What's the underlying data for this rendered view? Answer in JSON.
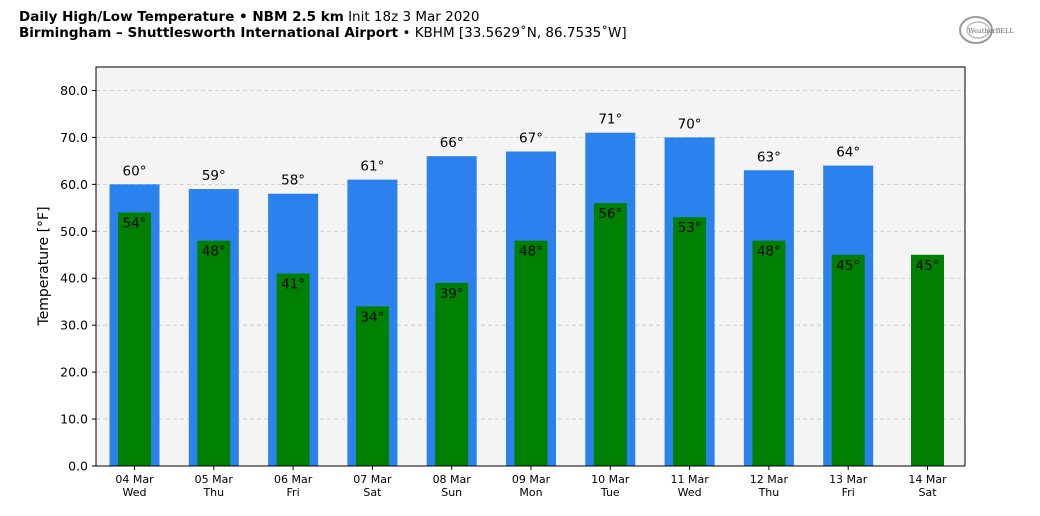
{
  "header": {
    "line1_bold": "Daily High/Low Temperature • NBM 2.5 km",
    "line1_thin": "Init 18z 3 Mar 2020",
    "line2_bold": "Birmingham – Shuttlesworth International Airport",
    "line2_thin": "• KBHM [33.5629˚N, 86.7535˚W]"
  },
  "logo": {
    "text": "WeatherBELL"
  },
  "colors": {
    "high": "#2b82ee",
    "low": "#008000",
    "plot_bg": "#f4f4f4",
    "grid": "#c8c8c8"
  },
  "chart_data": {
    "type": "bar",
    "title": "Daily High/Low Temperature • NBM 2.5 km",
    "ylabel": "Temperature [°F]",
    "ylim": [
      0,
      85
    ],
    "yticks": [
      0,
      10,
      20,
      30,
      40,
      50,
      60,
      70,
      80
    ],
    "ytick_labels": [
      "0.0",
      "10.0",
      "20.0",
      "30.0",
      "40.0",
      "50.0",
      "60.0",
      "70.0",
      "80.0"
    ],
    "grid": true,
    "categories": [
      {
        "date": "04 Mar",
        "day": "Wed"
      },
      {
        "date": "05 Mar",
        "day": "Thu"
      },
      {
        "date": "06 Mar",
        "day": "Fri"
      },
      {
        "date": "07 Mar",
        "day": "Sat"
      },
      {
        "date": "08 Mar",
        "day": "Sun"
      },
      {
        "date": "09 Mar",
        "day": "Mon"
      },
      {
        "date": "10 Mar",
        "day": "Tue"
      },
      {
        "date": "11 Mar",
        "day": "Wed"
      },
      {
        "date": "12 Mar",
        "day": "Thu"
      },
      {
        "date": "13 Mar",
        "day": "Fri"
      },
      {
        "date": "14 Mar",
        "day": "Sat"
      }
    ],
    "series": [
      {
        "values": [
          60,
          59,
          58,
          61,
          66,
          67,
          71,
          70,
          63,
          64,
          null
        ],
        "labels": [
          "60°",
          "59°",
          "58°",
          "61°",
          "66°",
          "67°",
          "71°",
          "70°",
          "63°",
          "64°",
          ""
        ]
      },
      {
        "values": [
          54,
          48,
          41,
          34,
          39,
          48,
          56,
          53,
          48,
          45,
          45
        ],
        "labels": [
          "54°",
          "48°",
          "41°",
          "34°",
          "39°",
          "48°",
          "56°",
          "53°",
          "48°",
          "45°",
          "45°"
        ]
      }
    ]
  }
}
